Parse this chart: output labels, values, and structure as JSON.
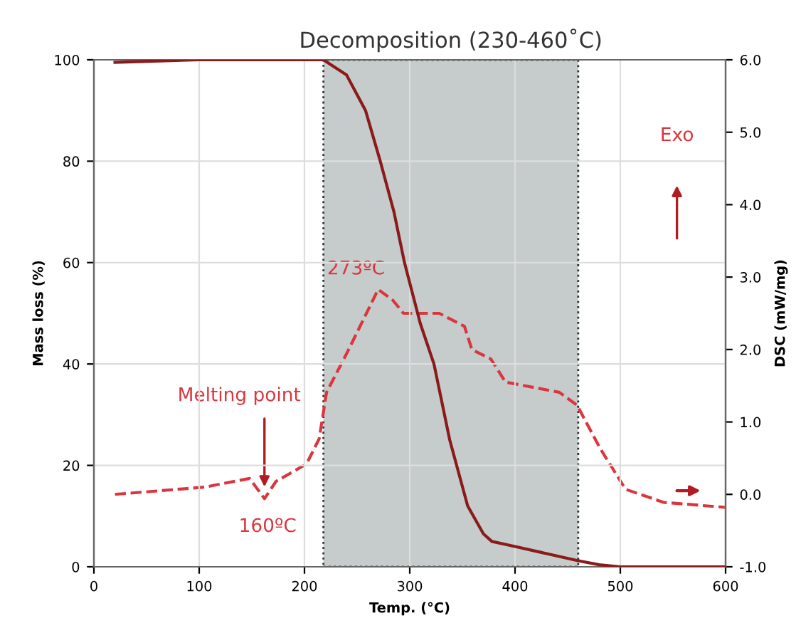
{
  "chart_data": {
    "type": "line",
    "title": "Decomposition (230-460˚C)",
    "xlabel": "Temp. (°C)",
    "ylabel": "Mass loss (%)",
    "y2label": "DSC (mW/mg)",
    "series": [
      {
        "color": "#8b1a1a",
        "line_style": "solid",
        "x": [
          20,
          100,
          218,
          240,
          258,
          272,
          285,
          295,
          300,
          310,
          323,
          338,
          355,
          370,
          378,
          400,
          430,
          460,
          480,
          500,
          600
        ],
        "values": [
          99.5,
          100,
          100,
          97,
          90,
          80,
          70,
          60,
          56,
          48,
          40,
          25,
          12,
          6.5,
          5,
          4,
          2.6,
          1.2,
          0.4,
          0,
          0
        ]
      },
      {
        "color": "#d9363e",
        "line_style": "dashed",
        "axis": "y2",
        "x": [
          20,
          105,
          148,
          162,
          173,
          202,
          214,
          221,
          241,
          270,
          284,
          294,
          328,
          352,
          359,
          377,
          391,
          442,
          459,
          481,
          505,
          541,
          600
        ],
        "values": [
          0.0,
          0.1,
          0.22,
          -0.06,
          0.18,
          0.42,
          0.77,
          1.41,
          1.97,
          2.83,
          2.68,
          2.5,
          2.5,
          2.32,
          2.0,
          1.87,
          1.55,
          1.41,
          1.23,
          0.63,
          0.07,
          -0.11,
          -0.18
        ]
      }
    ],
    "bands": [
      {
        "axis": "x",
        "from": 218,
        "to": 460,
        "color": "#c6cbcb"
      }
    ],
    "annotations": [
      "Melting point",
      "160ºC",
      "273ºC",
      "Exo"
    ],
    "xlim": [
      0,
      600
    ],
    "xticks": [
      0,
      100,
      200,
      300,
      400,
      500,
      600
    ],
    "ylim": [
      0,
      100
    ],
    "yticks": [
      0,
      20,
      40,
      60,
      80,
      100
    ],
    "y2lim": [
      -1.0,
      6.0
    ],
    "y2ticks": [
      {
        "value": -1,
        "label": "-1.0"
      },
      {
        "value": 0,
        "label": "0.0"
      },
      {
        "value": 1,
        "label": "1.0"
      },
      {
        "value": 2,
        "label": "2.0"
      },
      {
        "value": 3,
        "label": "3.0"
      },
      {
        "value": 4,
        "label": "4.0"
      },
      {
        "value": 5,
        "label": "5.0"
      },
      {
        "value": 6,
        "label": "6.0"
      }
    ],
    "grid": true,
    "legend": false
  }
}
